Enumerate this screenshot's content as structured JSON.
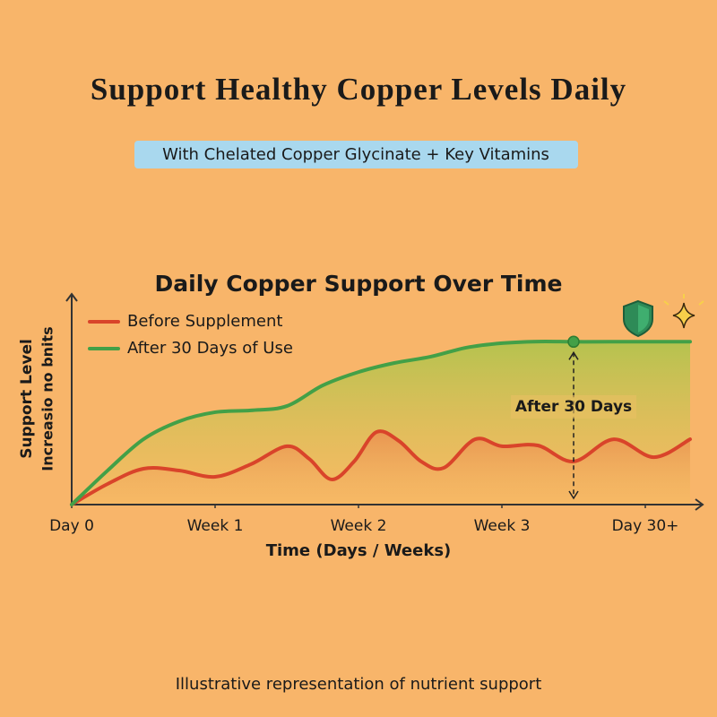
{
  "chart_data": {
    "type": "line",
    "title": "Support Healthy Copper Levels Daily",
    "subtitle": "With Chelated Copper Glycinate + Key Vitamins",
    "chart_title": "Daily Copper Support Over Time",
    "x_label": "Time (Days / Weeks)",
    "y_label": "Support Level",
    "y_sublabel": "Increasio no bnits",
    "annotation": "After 30 Days",
    "footer": "Illustrative representation of nutrient support",
    "xlim": [
      0,
      4.4
    ],
    "ylim": [
      0,
      100
    ],
    "xticks": [
      {
        "value": 0,
        "label": "Day 0"
      },
      {
        "value": 1,
        "label": "Week 1"
      },
      {
        "value": 2,
        "label": "Week 2"
      },
      {
        "value": 3,
        "label": "Week 3"
      },
      {
        "value": 4,
        "label": "Day 30+"
      }
    ],
    "series": [
      {
        "name": "Before Supplement",
        "color": "#d9442a",
        "x": [
          0,
          0.25,
          0.5,
          0.75,
          1,
          1.25,
          1.5,
          1.656,
          1.8125,
          1.969,
          2.125,
          2.281,
          2.4375,
          2.594,
          2.8125,
          3,
          3.25,
          3.5,
          3.78,
          4.06,
          4.3125
        ],
        "values": [
          0,
          10,
          17.4,
          16.5,
          13.5,
          19.6,
          28.3,
          22.2,
          12.2,
          20.9,
          35.2,
          30.9,
          20.9,
          17.8,
          31.7,
          28.3,
          28.7,
          20.9,
          31.7,
          23,
          31.7
        ]
      },
      {
        "name": "After 30 Days of Use",
        "color": "#43a047",
        "x": [
          0,
          0.25,
          0.5,
          0.75,
          1,
          1.25,
          1.5,
          1.75,
          2,
          2.25,
          2.5,
          2.75,
          3,
          3.25,
          3.5,
          3.75,
          4.3125
        ],
        "values": [
          0,
          16.5,
          31.7,
          40.4,
          44.8,
          45.7,
          47.8,
          57.8,
          64.3,
          68.7,
          71.7,
          76.1,
          78.3,
          79.1,
          79,
          79,
          79
        ]
      }
    ]
  }
}
